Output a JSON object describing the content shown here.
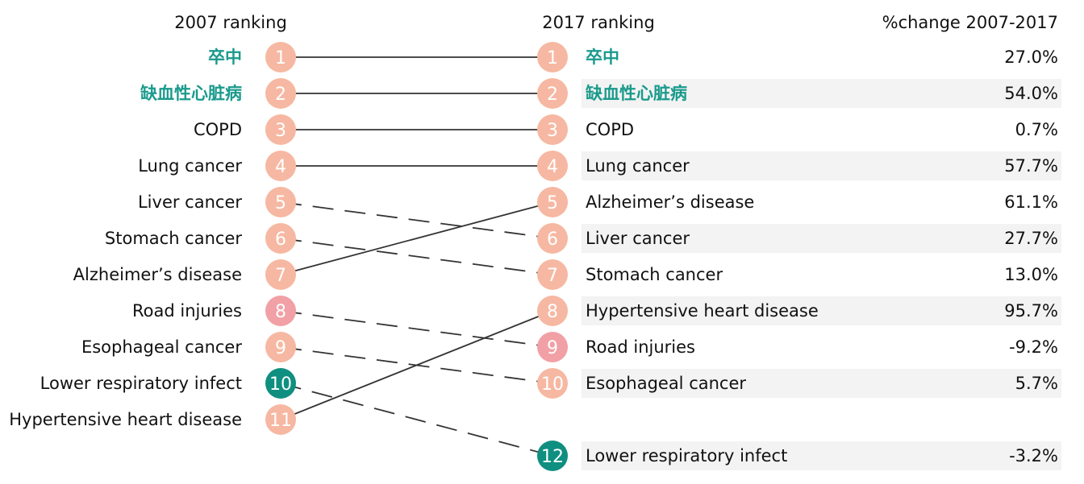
{
  "chart_data": {
    "type": "bump",
    "headers": {
      "left": "2007 ranking",
      "middle": "2017 ranking",
      "right": "%change 2007-2017"
    },
    "colors": {
      "circle_default": "#f6b8a2",
      "circle_pink": "#f1a0a6",
      "circle_teal": "#0f8f80",
      "label_highlight": "#1a9a8c",
      "label_default": "#111111",
      "line": "#333333",
      "stripe": "#f3f3f3"
    },
    "causes": [
      {
        "name": "卒中",
        "rank_2007": 1,
        "rank_2017": 1,
        "pct_change": "27.0%",
        "highlight": true,
        "circle": "default"
      },
      {
        "name": "缺血性心脏病",
        "rank_2007": 2,
        "rank_2017": 2,
        "pct_change": "54.0%",
        "highlight": true,
        "circle": "default"
      },
      {
        "name": "COPD",
        "rank_2007": 3,
        "rank_2017": 3,
        "pct_change": "0.7%",
        "highlight": false,
        "circle": "default"
      },
      {
        "name": "Lung cancer",
        "rank_2007": 4,
        "rank_2017": 4,
        "pct_change": "57.7%",
        "highlight": false,
        "circle": "default"
      },
      {
        "name": "Liver cancer",
        "rank_2007": 5,
        "rank_2017": 6,
        "pct_change": "27.7%",
        "highlight": false,
        "circle": "default"
      },
      {
        "name": "Stomach cancer",
        "rank_2007": 6,
        "rank_2017": 7,
        "pct_change": "13.0%",
        "highlight": false,
        "circle": "default"
      },
      {
        "name": "Alzheimer’s disease",
        "rank_2007": 7,
        "rank_2017": 5,
        "pct_change": "61.1%",
        "highlight": false,
        "circle": "default"
      },
      {
        "name": "Road injuries",
        "rank_2007": 8,
        "rank_2017": 9,
        "pct_change": "-9.2%",
        "highlight": false,
        "circle": "pink"
      },
      {
        "name": "Esophageal cancer",
        "rank_2007": 9,
        "rank_2017": 10,
        "pct_change": "5.7%",
        "highlight": false,
        "circle": "default"
      },
      {
        "name": "Lower respiratory infect",
        "rank_2007": 10,
        "rank_2017": 12,
        "pct_change": "-3.2%",
        "highlight": false,
        "circle": "teal"
      },
      {
        "name": "Hypertensive heart disease",
        "rank_2007": 11,
        "rank_2017": 8,
        "pct_change": "95.7%",
        "highlight": false,
        "circle": "default"
      }
    ]
  }
}
